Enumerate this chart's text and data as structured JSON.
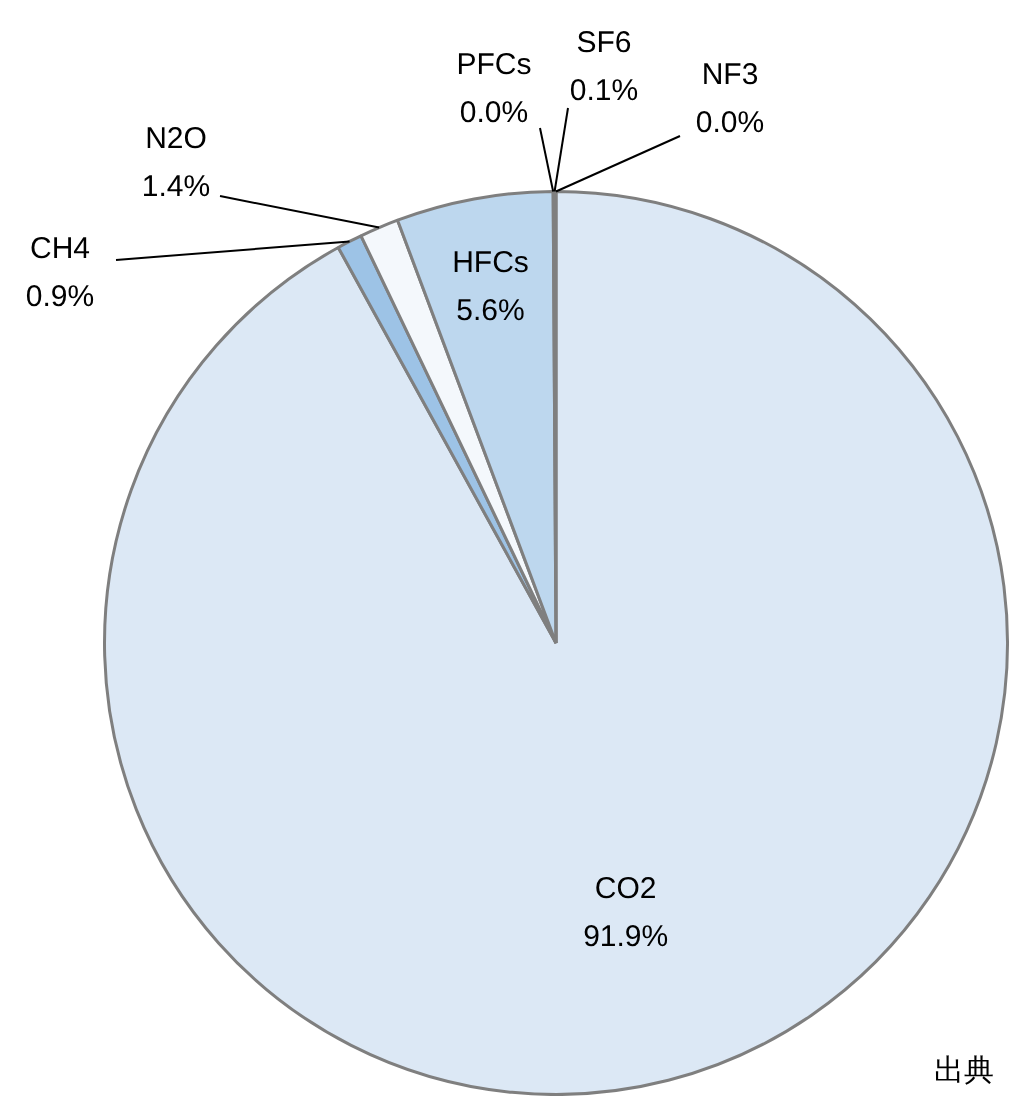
{
  "chart_data": {
    "type": "pie",
    "categories": [
      "CO2",
      "CH4",
      "N2O",
      "HFCs",
      "PFCs",
      "SF6",
      "NF3"
    ],
    "values": [
      91.9,
      0.9,
      1.4,
      5.6,
      0.0,
      0.1,
      0.0
    ],
    "value_labels": [
      "91.9%",
      "0.9%",
      "1.4%",
      "5.6%",
      "0.0%",
      "0.1%",
      "0.0%"
    ],
    "colors": [
      "#dce8f5",
      "#9dc3e6",
      "#f4f8fc",
      "#bdd7ee",
      "#808080",
      "#808080",
      "#808080"
    ],
    "legend": false,
    "annotations": [
      "出典"
    ]
  }
}
